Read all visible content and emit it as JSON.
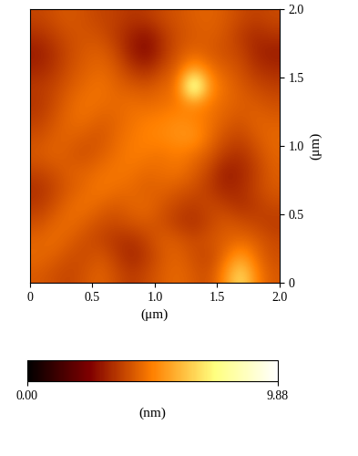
{
  "chart_data": {
    "type": "heatmap",
    "x_label": "(μm)",
    "y_label": "(μm)",
    "colorbar_label": "(nm)",
    "xlim": [
      0,
      2.0
    ],
    "ylim": [
      0,
      2.0
    ],
    "xticks": [
      0,
      0.5,
      1.0,
      1.5,
      2.0
    ],
    "yticks": [
      0,
      0.5,
      1.0,
      1.5,
      2.0
    ],
    "colorbar_range": [
      0,
      9.88
    ],
    "colorbar_ticks": [
      {
        "value": 0,
        "label": "0.00"
      },
      9.88
    ],
    "cells": [
      [
        4.2,
        4.0,
        3.8,
        4.1,
        4.4,
        4.0,
        3.6,
        3.9,
        4.3,
        4.5,
        4.2,
        4.0,
        5.2,
        7.0,
        5.0,
        4.2
      ],
      [
        4.5,
        4.3,
        4.0,
        3.9,
        4.2,
        3.7,
        3.2,
        3.6,
        4.2,
        4.4,
        4.0,
        3.8,
        4.6,
        5.6,
        4.6,
        4.0
      ],
      [
        4.4,
        4.6,
        4.3,
        4.0,
        3.8,
        3.5,
        3.4,
        3.8,
        4.3,
        4.2,
        3.9,
        4.1,
        4.3,
        4.5,
        4.3,
        3.9
      ],
      [
        4.0,
        4.4,
        4.6,
        4.3,
        4.0,
        3.9,
        4.1,
        4.2,
        4.0,
        3.6,
        3.4,
        3.8,
        4.2,
        4.0,
        3.8,
        3.6
      ],
      [
        3.6,
        4.0,
        4.5,
        4.7,
        4.4,
        4.2,
        4.4,
        4.5,
        4.1,
        3.8,
        3.6,
        3.9,
        3.7,
        3.4,
        3.6,
        3.9
      ],
      [
        3.4,
        3.8,
        4.2,
        4.5,
        4.8,
        4.6,
        4.5,
        4.3,
        4.4,
        4.2,
        4.0,
        3.6,
        3.2,
        3.3,
        3.8,
        4.2
      ],
      [
        3.8,
        4.0,
        4.3,
        4.4,
        4.6,
        4.8,
        4.7,
        4.5,
        4.6,
        4.7,
        4.3,
        3.8,
        3.0,
        3.2,
        3.7,
        4.3
      ],
      [
        4.2,
        4.4,
        4.2,
        4.0,
        4.3,
        4.6,
        4.9,
        4.8,
        4.7,
        4.9,
        4.6,
        4.2,
        3.6,
        3.4,
        3.9,
        4.4
      ],
      [
        4.0,
        4.3,
        4.4,
        4.2,
        4.1,
        4.5,
        4.8,
        5.0,
        5.1,
        5.3,
        5.4,
        4.6,
        4.0,
        3.8,
        4.2,
        4.5
      ],
      [
        3.7,
        4.1,
        4.5,
        4.6,
        4.3,
        4.4,
        4.7,
        4.9,
        5.0,
        5.2,
        5.0,
        4.7,
        4.3,
        4.1,
        4.4,
        4.3
      ],
      [
        3.5,
        3.9,
        4.4,
        4.7,
        4.6,
        4.5,
        4.6,
        4.5,
        4.6,
        4.8,
        5.2,
        4.8,
        4.5,
        4.3,
        4.2,
        4.0
      ],
      [
        3.6,
        3.8,
        4.2,
        4.5,
        4.7,
        4.4,
        4.2,
        4.1,
        4.4,
        4.7,
        9.5,
        5.3,
        4.6,
        4.2,
        3.9,
        3.7
      ],
      [
        3.2,
        3.5,
        4.0,
        4.3,
        4.5,
        4.2,
        3.6,
        3.3,
        3.9,
        4.4,
        5.6,
        4.7,
        4.3,
        4.0,
        3.5,
        3.3
      ],
      [
        3.0,
        3.4,
        3.9,
        4.2,
        4.3,
        3.9,
        3.0,
        2.6,
        3.4,
        4.1,
        4.4,
        4.2,
        4.0,
        3.8,
        3.2,
        3.0
      ],
      [
        3.4,
        3.7,
        4.0,
        4.1,
        4.0,
        3.6,
        3.1,
        2.8,
        3.5,
        4.0,
        4.2,
        4.3,
        4.1,
        3.6,
        3.3,
        3.5
      ],
      [
        3.8,
        4.0,
        4.2,
        4.0,
        3.8,
        3.7,
        3.5,
        3.6,
        3.9,
        4.1,
        4.3,
        4.4,
        4.2,
        3.9,
        3.7,
        3.9
      ]
    ]
  }
}
